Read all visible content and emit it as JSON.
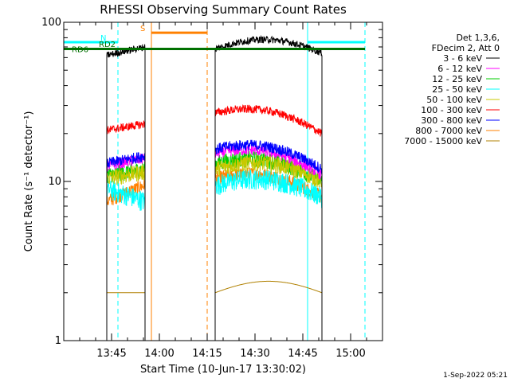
{
  "chart_data": {
    "type": "line",
    "title": "RHESSI Observing Summary Count Rates",
    "xlabel": "Start Time (10-Jun-17 13:30:02)",
    "ylabel": "Count Rate (s⁻¹ detector⁻¹)",
    "y_scale": "log",
    "ylim": [
      1,
      100
    ],
    "y_ticks": [
      "1",
      "10",
      "100"
    ],
    "x_unit": "minutes since 13:30:02",
    "xlim": [
      0,
      100
    ],
    "x_ticks": [
      {
        "label": "13:45",
        "value": 15
      },
      {
        "label": "14:00",
        "value": 30
      },
      {
        "label": "14:15",
        "value": 45
      },
      {
        "label": "14:30",
        "value": 60
      },
      {
        "label": "14:45",
        "value": 75
      },
      {
        "label": "15:00",
        "value": 90
      }
    ],
    "legend_header": [
      "Det 1,3,6,",
      "FDecim 2, Att 0"
    ],
    "legend_position": "right",
    "data_intervals": [
      [
        13.5,
        25.5
      ],
      [
        47.5,
        81
      ]
    ],
    "series": [
      {
        "name": "3 - 6 keV",
        "color": "#000000",
        "levels": [
          62,
          70,
          68,
          64
        ],
        "noise": 0.05
      },
      {
        "name": "6 - 12 keV",
        "color": "#ff00ff",
        "levels": [
          12.5,
          14,
          15,
          11
        ],
        "noise": 0.08
      },
      {
        "name": "12 - 25 keV",
        "color": "#00cc00",
        "levels": [
          11,
          12,
          13,
          10
        ],
        "noise": 0.12
      },
      {
        "name": "25 - 50 keV",
        "color": "#00ffff",
        "levels": [
          9,
          7.5,
          9.5,
          8
        ],
        "noise": 0.15
      },
      {
        "name": "50 - 100 keV",
        "color": "#c8c800",
        "levels": [
          10.5,
          11.5,
          12,
          10
        ],
        "noise": 0.12
      },
      {
        "name": "100 - 300 keV",
        "color": "#ff0000",
        "levels": [
          21,
          23,
          27,
          20
        ],
        "noise": 0.06
      },
      {
        "name": "300 - 800 keV",
        "color": "#0000ff",
        "levels": [
          13,
          14.5,
          16,
          12
        ],
        "noise": 0.08
      },
      {
        "name": "800 - 7000 keV",
        "color": "#ff8000",
        "levels": [
          7.5,
          9.5,
          10.5,
          8
        ],
        "noise": 0.1
      },
      {
        "name": "7000 - 15000 keV",
        "color": "#b08000",
        "levels": [
          2,
          2,
          2,
          2
        ],
        "noise": 0.0
      }
    ],
    "flags": [
      {
        "label": "N",
        "color": "#00ffff",
        "ranges": [
          [
            0,
            17
          ],
          [
            76.5,
            94.5
          ]
        ],
        "level": 75
      },
      {
        "label": "S",
        "color": "#ff8000",
        "ranges": [
          [
            27.5,
            45
          ]
        ],
        "level": 86
      },
      {
        "label": "RD2",
        "color": "#007000",
        "ranges": [
          [
            0,
            0
          ]
        ],
        "level": 69
      },
      {
        "label": "RD6",
        "color": "#007000",
        "ranges": [
          [
            0,
            94.5
          ]
        ],
        "level": 68
      }
    ],
    "vlines": [
      {
        "x": 0,
        "color": "#00ffff",
        "style": "solid"
      },
      {
        "x": 17,
        "color": "#00ffff",
        "style": "dashed"
      },
      {
        "x": 27.5,
        "color": "#ff8000",
        "style": "solid"
      },
      {
        "x": 45,
        "color": "#ff8000",
        "style": "dashed"
      },
      {
        "x": 76.5,
        "color": "#00ffff",
        "style": "solid"
      },
      {
        "x": 94.5,
        "color": "#00ffff",
        "style": "dashed"
      }
    ],
    "timestamp": "1-Sep-2022 05:21"
  }
}
